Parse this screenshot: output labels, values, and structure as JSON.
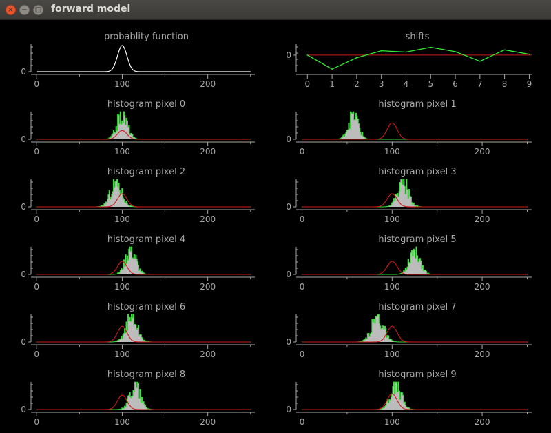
{
  "window": {
    "title": "forward model",
    "close_glyph": "×",
    "minimize_glyph": "−",
    "maximize_glyph": "□"
  },
  "colors": {
    "background": "#000000",
    "axis": "#a8a8a8",
    "text": "#a8a8a8",
    "gaussian": "#ffffff",
    "model": "#d01818",
    "histogram_fill": "#bcbcbc",
    "histogram_line": "#33dd33",
    "shifts_line": "#33ee33",
    "zero_line": "#d01818"
  },
  "chart_data": [
    {
      "id": "probability",
      "type": "line",
      "title": "probablity function",
      "xticks": [
        0,
        100,
        200
      ],
      "yticks": [
        0
      ],
      "xlim": [
        -5,
        255
      ],
      "series": [
        {
          "kind": "gaussian",
          "mu": 100,
          "sigma": 5.5,
          "peak": 1.0
        }
      ]
    },
    {
      "id": "shifts",
      "type": "line",
      "title": "shifts",
      "xticks": [
        0,
        1,
        2,
        3,
        4,
        5,
        6,
        7,
        8,
        9
      ],
      "yticks": [
        0
      ],
      "xlim": [
        -0.4,
        9.1
      ],
      "ylim": [
        -38,
        22
      ],
      "x": [
        0,
        1,
        2,
        3,
        4,
        5,
        6,
        7,
        8,
        9
      ],
      "values": [
        0,
        -32,
        -6,
        10,
        7,
        18,
        8,
        -14,
        12,
        2
      ],
      "zero_line": 0
    },
    {
      "id": "pixel0",
      "type": "area",
      "title": "histogram pixel 0",
      "xticks": [
        0,
        100,
        200
      ],
      "yticks": [
        0
      ],
      "xlim": [
        -5,
        255
      ],
      "model_center": 100,
      "model_sigma": 5.5,
      "model_peak": 0.33,
      "hist_center": 100,
      "hist_sigma": 6,
      "hist_peak": 0.95
    },
    {
      "id": "pixel1",
      "type": "area",
      "title": "histogram pixel 1",
      "xticks": [
        0,
        100,
        200
      ],
      "yticks": [
        0
      ],
      "xlim": [
        -5,
        255
      ],
      "model_center": 100,
      "model_sigma": 5.5,
      "model_peak": 0.62,
      "hist_center": 57,
      "hist_sigma": 5.5,
      "hist_peak": 0.95
    },
    {
      "id": "pixel2",
      "type": "area",
      "title": "histogram pixel 2",
      "xticks": [
        0,
        100,
        200
      ],
      "yticks": [
        0
      ],
      "xlim": [
        -5,
        255
      ],
      "model_center": 100,
      "model_sigma": 5.5,
      "model_peak": 0.5,
      "hist_center": 93,
      "hist_sigma": 6.5,
      "hist_peak": 0.95
    },
    {
      "id": "pixel3",
      "type": "area",
      "title": "histogram pixel 3",
      "xticks": [
        0,
        100,
        200
      ],
      "yticks": [
        0
      ],
      "xlim": [
        -5,
        255
      ],
      "model_center": 100,
      "model_sigma": 5.5,
      "model_peak": 0.5,
      "hist_center": 112,
      "hist_sigma": 6,
      "hist_peak": 0.95
    },
    {
      "id": "pixel4",
      "type": "area",
      "title": "histogram pixel 4",
      "xticks": [
        0,
        100,
        200
      ],
      "yticks": [
        0
      ],
      "xlim": [
        -5,
        255
      ],
      "model_center": 100,
      "model_sigma": 5.5,
      "model_peak": 0.5,
      "hist_center": 110,
      "hist_sigma": 6,
      "hist_peak": 0.95
    },
    {
      "id": "pixel5",
      "type": "area",
      "title": "histogram pixel 5",
      "xticks": [
        0,
        100,
        200
      ],
      "yticks": [
        0
      ],
      "xlim": [
        -5,
        255
      ],
      "model_center": 100,
      "model_sigma": 5.5,
      "model_peak": 0.5,
      "hist_center": 125,
      "hist_sigma": 6,
      "hist_peak": 0.95
    },
    {
      "id": "pixel6",
      "type": "area",
      "title": "histogram pixel 6",
      "xticks": [
        0,
        100,
        200
      ],
      "yticks": [
        0
      ],
      "xlim": [
        -5,
        255
      ],
      "model_center": 100,
      "model_sigma": 5.5,
      "model_peak": 0.6,
      "hist_center": 111,
      "hist_sigma": 6.5,
      "hist_peak": 0.95
    },
    {
      "id": "pixel7",
      "type": "area",
      "title": "histogram pixel 7",
      "xticks": [
        0,
        100,
        200
      ],
      "yticks": [
        0
      ],
      "xlim": [
        -5,
        255
      ],
      "model_center": 100,
      "model_sigma": 5.5,
      "model_peak": 0.6,
      "hist_center": 84,
      "hist_sigma": 6.5,
      "hist_peak": 0.95
    },
    {
      "id": "pixel8",
      "type": "area",
      "title": "histogram pixel 8",
      "xticks": [
        0,
        100,
        200
      ],
      "yticks": [
        0
      ],
      "xlim": [
        -5,
        255
      ],
      "model_center": 100,
      "model_sigma": 5.5,
      "model_peak": 0.55,
      "hist_center": 115,
      "hist_sigma": 6,
      "hist_peak": 0.95
    },
    {
      "id": "pixel9",
      "type": "area",
      "title": "histogram pixel 9",
      "xticks": [
        0,
        100,
        200
      ],
      "yticks": [
        0
      ],
      "xlim": [
        -5,
        255
      ],
      "model_center": 100,
      "model_sigma": 5.5,
      "model_peak": 0.6,
      "hist_center": 104,
      "hist_sigma": 6,
      "hist_peak": 0.95
    }
  ]
}
